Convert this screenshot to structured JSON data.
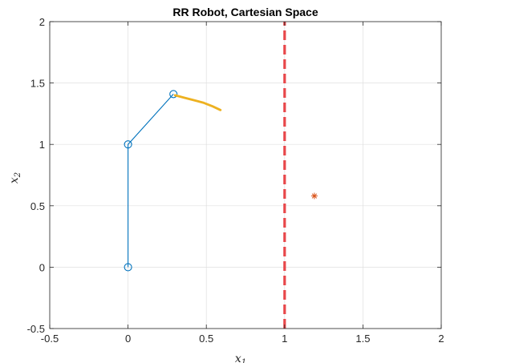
{
  "chart_data": {
    "type": "line",
    "title": "RR Robot, Cartesian Space",
    "xlabel": "x",
    "xlabel_sub": "1",
    "ylabel": "x",
    "ylabel_sub": "2",
    "xlim": [
      -0.5,
      2
    ],
    "ylim": [
      -0.5,
      2
    ],
    "xticks": [
      -0.5,
      0,
      0.5,
      1,
      1.5,
      2
    ],
    "xtick_labels": [
      "-0.5",
      "0",
      "0.5",
      "1",
      "1.5",
      "2"
    ],
    "yticks": [
      -0.5,
      0,
      0.5,
      1,
      1.5,
      2
    ],
    "ytick_labels": [
      "-0.5",
      "0",
      "0.5",
      "1",
      "1.5",
      "2"
    ],
    "grid": true,
    "series": [
      {
        "kind": "robot-arm",
        "x": [
          0,
          0,
          0.29
        ],
        "y": [
          0,
          1,
          1.41
        ],
        "color": "#0072BD",
        "marker": "circle"
      },
      {
        "kind": "trajectory",
        "x": [
          0.3,
          0.36,
          0.42,
          0.48,
          0.54,
          0.59
        ],
        "y": [
          1.4,
          1.38,
          1.36,
          1.34,
          1.31,
          1.28
        ],
        "color": "#EDB120"
      },
      {
        "kind": "boundary",
        "x": [
          1,
          1
        ],
        "y": [
          -0.5,
          2
        ],
        "color": "#E8474A",
        "style": "dashed"
      },
      {
        "kind": "target",
        "x": [
          1.19
        ],
        "y": [
          0.58
        ],
        "color": "#D95319",
        "marker": "asterisk"
      }
    ]
  }
}
